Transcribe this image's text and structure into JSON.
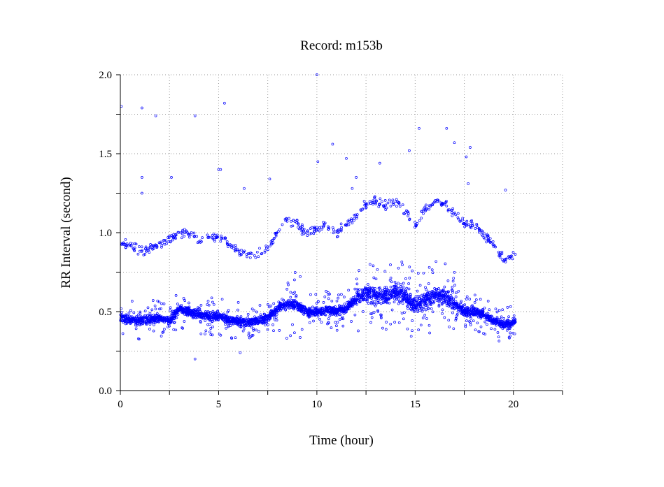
{
  "chart_data": {
    "type": "scatter",
    "title": "Record:  m153b",
    "xlabel": "Time (hour)",
    "ylabel": "RR Interval (second)",
    "xlim": [
      0,
      22.5
    ],
    "ylim": [
      0,
      2.0
    ],
    "x_ticks": [
      0,
      5,
      10,
      15,
      20
    ],
    "x_tick_labels": [
      "0",
      "5",
      "10",
      "15",
      "20"
    ],
    "x_minor_ticks": [
      2.5,
      7.5,
      12.5,
      17.5,
      22.5
    ],
    "y_ticks": [
      0.0,
      0.5,
      1.0,
      1.5,
      2.0
    ],
    "y_tick_labels": [
      "0.0",
      "0.5",
      "1.0",
      "1.5",
      "2.0"
    ],
    "y_minor_ticks": [
      0.25,
      0.75,
      1.25,
      1.75
    ],
    "grid": true,
    "marker": "open-circle",
    "point_color": "#0000ff",
    "series": [
      {
        "main_band": [
          [
            0,
            0.46
          ],
          [
            0.5,
            0.45
          ],
          [
            1,
            0.44
          ],
          [
            1.5,
            0.45
          ],
          [
            2,
            0.46
          ],
          [
            2.5,
            0.44
          ],
          [
            3,
            0.52
          ],
          [
            3.5,
            0.5
          ],
          [
            4,
            0.48
          ],
          [
            4.5,
            0.47
          ],
          [
            5,
            0.47
          ],
          [
            5.5,
            0.45
          ],
          [
            6,
            0.44
          ],
          [
            6.5,
            0.43
          ],
          [
            7,
            0.44
          ],
          [
            7.5,
            0.46
          ],
          [
            8,
            0.52
          ],
          [
            8.5,
            0.55
          ],
          [
            9,
            0.54
          ],
          [
            9.5,
            0.5
          ],
          [
            10,
            0.5
          ],
          [
            10.5,
            0.51
          ],
          [
            11,
            0.5
          ],
          [
            11.5,
            0.52
          ],
          [
            12,
            0.58
          ],
          [
            12.5,
            0.62
          ],
          [
            13,
            0.6
          ],
          [
            13.5,
            0.6
          ],
          [
            14,
            0.62
          ],
          [
            14.5,
            0.6
          ],
          [
            15,
            0.53
          ],
          [
            15.5,
            0.57
          ],
          [
            16,
            0.6
          ],
          [
            16.5,
            0.6
          ],
          [
            17,
            0.55
          ],
          [
            17.5,
            0.5
          ],
          [
            18,
            0.5
          ],
          [
            18.5,
            0.48
          ],
          [
            19,
            0.44
          ],
          [
            19.5,
            0.42
          ],
          [
            20,
            0.43
          ],
          [
            20.1,
            0.44
          ]
        ],
        "upper_band": [
          [
            0,
            0.92
          ],
          [
            0.5,
            0.93
          ],
          [
            1,
            0.88
          ],
          [
            1.5,
            0.9
          ],
          [
            2,
            0.92
          ],
          [
            2.5,
            0.95
          ],
          [
            3,
            1.0
          ],
          [
            3.5,
            1.0
          ],
          [
            4,
            0.95
          ],
          [
            4.5,
            0.96
          ],
          [
            5,
            0.97
          ],
          [
            5.5,
            0.93
          ],
          [
            6,
            0.88
          ],
          [
            6.5,
            0.86
          ],
          [
            7,
            0.85
          ],
          [
            7.5,
            0.9
          ],
          [
            8,
            1.0
          ],
          [
            8.5,
            1.08
          ],
          [
            9,
            1.05
          ],
          [
            9.5,
            1.0
          ],
          [
            10,
            1.03
          ],
          [
            10.5,
            1.05
          ],
          [
            11,
            1.0
          ],
          [
            11.5,
            1.05
          ],
          [
            12,
            1.1
          ],
          [
            12.5,
            1.18
          ],
          [
            13,
            1.2
          ],
          [
            13.5,
            1.17
          ],
          [
            14,
            1.2
          ],
          [
            14.5,
            1.13
          ],
          [
            15,
            1.05
          ],
          [
            15.5,
            1.15
          ],
          [
            16,
            1.2
          ],
          [
            16.5,
            1.18
          ],
          [
            17,
            1.12
          ],
          [
            17.5,
            1.05
          ],
          [
            18,
            1.05
          ],
          [
            18.5,
            0.98
          ],
          [
            19,
            0.92
          ],
          [
            19.5,
            0.83
          ],
          [
            20,
            0.87
          ],
          [
            20.1,
            0.88
          ]
        ],
        "outliers": [
          [
            0.05,
            1.8
          ],
          [
            1.1,
            1.79
          ],
          [
            1.8,
            1.74
          ],
          [
            3.8,
            1.74
          ],
          [
            5.3,
            1.82
          ],
          [
            10,
            2.0
          ],
          [
            10.05,
            1.45
          ],
          [
            10.8,
            1.56
          ],
          [
            11.5,
            1.47
          ],
          [
            15.2,
            1.66
          ],
          [
            16.6,
            1.66
          ],
          [
            17.0,
            1.57
          ],
          [
            17.8,
            1.54
          ],
          [
            17.6,
            1.48
          ],
          [
            14.7,
            1.52
          ],
          [
            5.0,
            1.4
          ],
          [
            5.1,
            1.4
          ],
          [
            6.3,
            1.28
          ],
          [
            7.6,
            1.34
          ],
          [
            2.6,
            1.35
          ],
          [
            1.1,
            1.35
          ],
          [
            1.1,
            1.25
          ],
          [
            19.6,
            1.27
          ],
          [
            17.7,
            1.31
          ],
          [
            13.2,
            1.44
          ],
          [
            3.8,
            0.2
          ],
          [
            6.1,
            0.24
          ],
          [
            12.0,
            1.35
          ],
          [
            11.8,
            1.28
          ]
        ]
      }
    ]
  }
}
